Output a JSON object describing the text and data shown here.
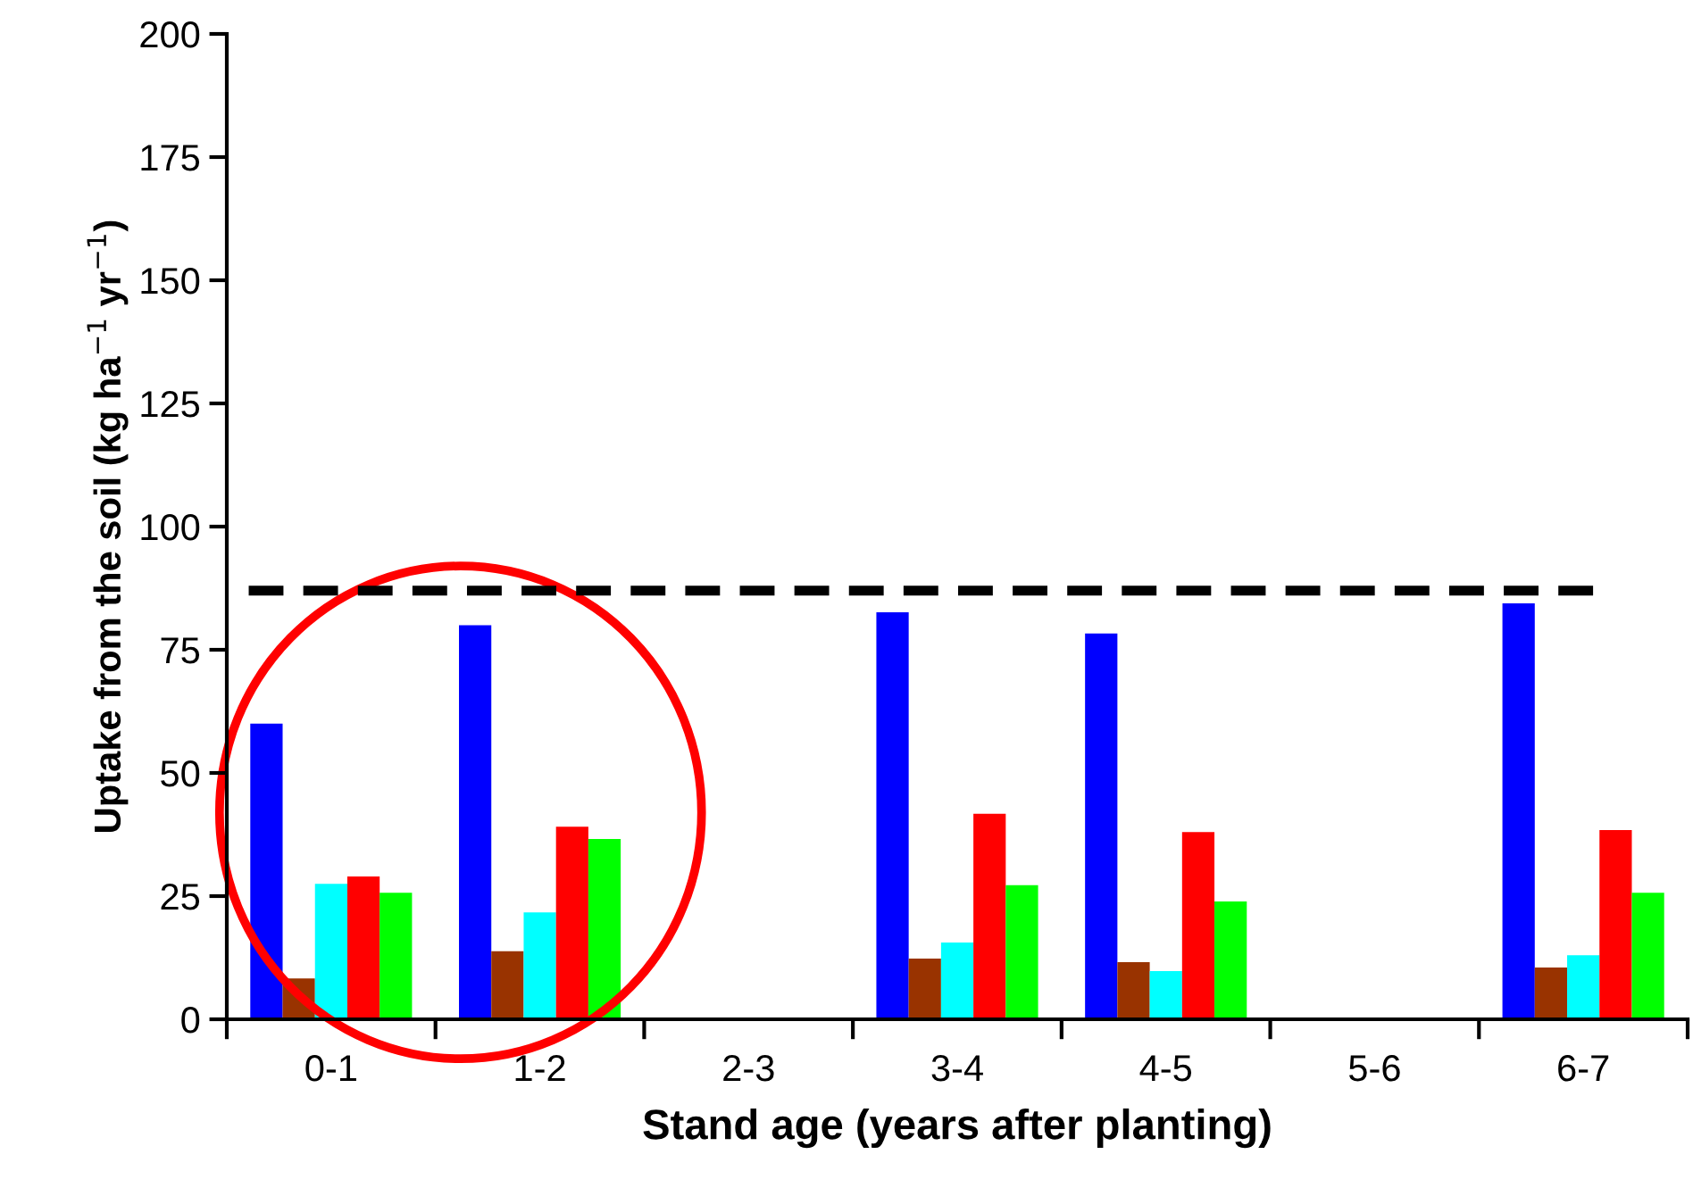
{
  "chart_data": {
    "type": "bar",
    "xlabel": "Stand age (years after planting)",
    "ylabel": "Uptake from the soil (kg ha$^{−1}$ yr$^{−1}$)",
    "categories": [
      "0-1",
      "1-2",
      "2-3",
      "3-4",
      "4-5",
      "5-6",
      "6-7"
    ],
    "series": [
      {
        "color": "#0000ff",
        "values": [
          60,
          80,
          0,
          82.6,
          78.3,
          0,
          84.4
        ]
      },
      {
        "color": "#993300",
        "values": [
          8.3,
          13.8,
          0,
          12.3,
          11.6,
          0,
          10.5
        ]
      },
      {
        "color": "#00ffff",
        "values": [
          27.5,
          21.7,
          0,
          15.6,
          9.8,
          0,
          13
        ]
      },
      {
        "color": "#ff0000",
        "values": [
          29,
          39.1,
          0,
          41.7,
          38,
          0,
          38.4
        ]
      },
      {
        "color": "#00ff00",
        "values": [
          25.7,
          36.6,
          0,
          27.2,
          23.9,
          0,
          25.7
        ]
      }
    ],
    "ylim": [
      0,
      200
    ],
    "yticks": [
      0,
      25,
      50,
      75,
      100,
      125,
      150,
      175,
      200
    ],
    "ref_lines": [
      {
        "axis": "y",
        "value": 87,
        "color": "#000000",
        "line_style": "dashed"
      }
    ],
    "grid": false,
    "legend": false
  }
}
